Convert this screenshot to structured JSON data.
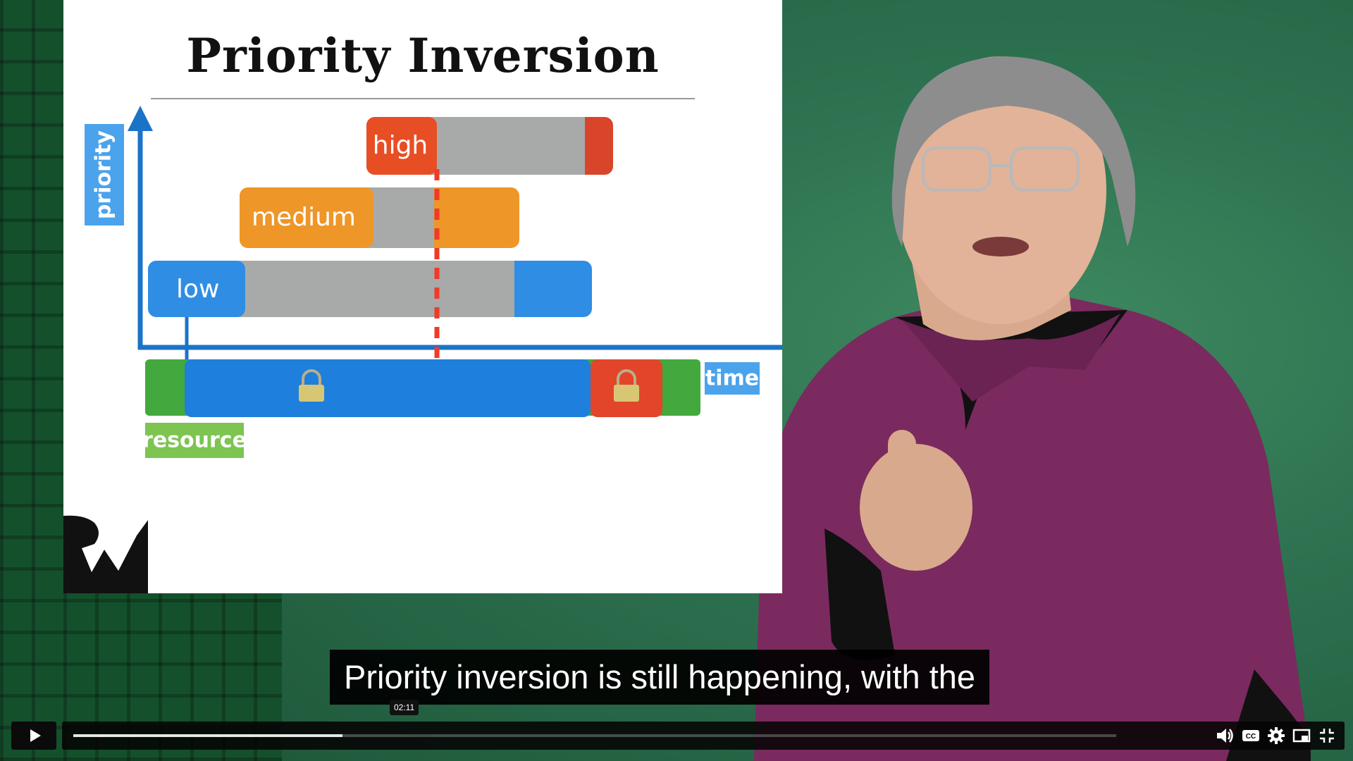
{
  "slide": {
    "title": "Priority Inversion",
    "axis_y_label": "priority",
    "axis_x_label": "time",
    "resource_label": "resource",
    "tasks": [
      {
        "label": "high",
        "color": "#e84e24"
      },
      {
        "label": "medium",
        "color": "#ee9628"
      },
      {
        "label": "low",
        "color": "#2f8de4"
      }
    ],
    "colors": {
      "blocked": "#a8aaa9",
      "axis": "#1b73c8",
      "resource": "#43a83d",
      "marker": "#f03a2a"
    },
    "icons": [
      "lock-icon",
      "lock-icon"
    ]
  },
  "subtitle": {
    "text": "Priority inversion is still happening, with the"
  },
  "player": {
    "current_time": "02:11",
    "progress": 0.258,
    "icons": [
      "play-icon",
      "volume-icon",
      "captions-icon",
      "settings-icon",
      "picture-in-picture-icon",
      "exit-fullscreen-icon"
    ]
  },
  "logo": {
    "icon": "rw-logo-icon"
  }
}
